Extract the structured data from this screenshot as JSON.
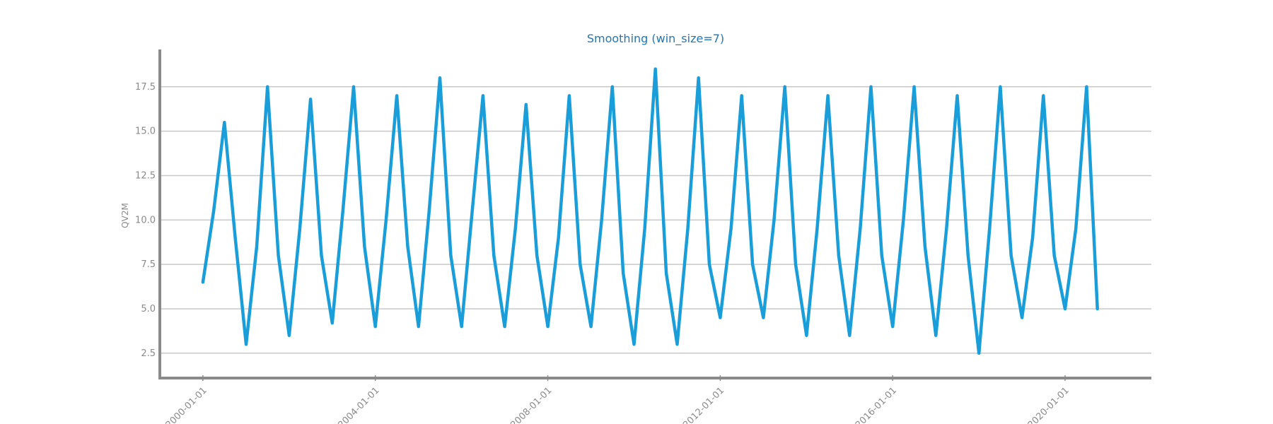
{
  "chart_data": {
    "type": "line",
    "title": "Smoothing (win_size=7)",
    "xlabel": "",
    "ylabel": "QV2M",
    "x_range": [
      "1999-01-01",
      "2022-01-01"
    ],
    "ylim": [
      1.1,
      19.6
    ],
    "y_ticks": [
      "2.5",
      "5.0",
      "7.5",
      "10.0",
      "12.5",
      "15.0",
      "17.5"
    ],
    "x_ticks": [
      "2000-01-01",
      "2004-01-01",
      "2008-01-01",
      "2012-01-01",
      "2016-01-01",
      "2020-01-01"
    ],
    "grid": "horizontal",
    "series": [
      {
        "color": "#1a9ed9",
        "x": [
          "2000-01-01",
          "2000-04-01",
          "2000-07-01",
          "2000-10-01",
          "2001-01-01",
          "2001-04-01",
          "2001-07-01",
          "2001-10-01",
          "2002-01-01",
          "2002-04-01",
          "2002-07-01",
          "2002-10-01",
          "2003-01-01",
          "2003-04-01",
          "2003-07-01",
          "2003-10-01",
          "2004-01-01",
          "2004-04-01",
          "2004-07-01",
          "2004-10-01",
          "2005-01-01",
          "2005-04-01",
          "2005-07-01",
          "2005-10-01",
          "2006-01-01",
          "2006-04-01",
          "2006-07-01",
          "2006-10-01",
          "2007-01-01",
          "2007-04-01",
          "2007-07-01",
          "2007-10-01",
          "2008-01-01",
          "2008-04-01",
          "2008-07-01",
          "2008-10-01",
          "2009-01-01",
          "2009-04-01",
          "2009-07-01",
          "2009-10-01",
          "2010-01-01",
          "2010-04-01",
          "2010-07-01",
          "2010-10-01",
          "2011-01-01",
          "2011-04-01",
          "2011-07-01",
          "2011-10-01",
          "2012-01-01",
          "2012-04-01",
          "2012-07-01",
          "2012-10-01",
          "2013-01-01",
          "2013-04-01",
          "2013-07-01",
          "2013-10-01",
          "2014-01-01",
          "2014-04-01",
          "2014-07-01",
          "2014-10-01",
          "2015-01-01",
          "2015-04-01",
          "2015-07-01",
          "2015-10-01",
          "2016-01-01",
          "2016-04-01",
          "2016-07-01",
          "2016-10-01",
          "2017-01-01",
          "2017-04-01",
          "2017-07-01",
          "2017-10-01",
          "2018-01-01",
          "2018-04-01",
          "2018-07-01",
          "2018-10-01",
          "2019-01-01",
          "2019-04-01",
          "2019-07-01",
          "2019-10-01",
          "2020-01-01",
          "2020-04-01",
          "2020-07-01",
          "2020-10-01"
        ],
        "y": [
          6.5,
          10.5,
          15.5,
          9.0,
          3.0,
          8.5,
          17.5,
          8.0,
          3.5,
          9.5,
          16.8,
          8.0,
          4.2,
          10.5,
          17.5,
          8.5,
          4.0,
          10.0,
          17.0,
          8.5,
          4.0,
          10.5,
          18.0,
          8.0,
          4.0,
          10.5,
          17.0,
          8.0,
          4.0,
          9.5,
          16.5,
          8.0,
          4.0,
          9.0,
          17.0,
          7.5,
          4.0,
          10.0,
          17.5,
          7.0,
          3.0,
          9.5,
          18.5,
          7.0,
          3.0,
          9.5,
          18.0,
          7.5,
          4.5,
          9.5,
          17.0,
          7.5,
          4.5,
          10.0,
          17.5,
          7.5,
          3.5,
          9.5,
          17.0,
          8.0,
          3.5,
          9.5,
          17.5,
          8.0,
          4.0,
          10.0,
          17.5,
          8.5,
          3.5,
          9.5,
          17.0,
          8.0,
          2.5,
          9.5,
          17.5,
          8.0,
          4.5,
          9.0,
          17.0,
          8.0,
          5.0,
          9.5,
          17.5,
          5.0
        ]
      }
    ]
  }
}
